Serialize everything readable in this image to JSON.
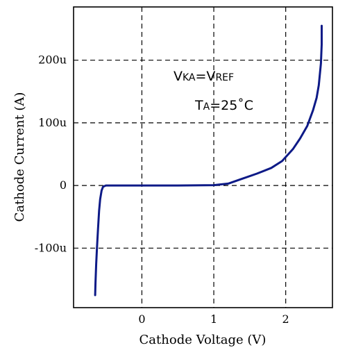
{
  "chart_data": {
    "type": "line",
    "xlabel": "Cathode Voltage (V)",
    "ylabel": "Cathode Current (A)",
    "xlim": [
      -0.95,
      2.65
    ],
    "ylim": [
      -0.000195,
      0.000285
    ],
    "grid": true,
    "x_ticks": [
      {
        "value": 0,
        "label": "0"
      },
      {
        "value": 1,
        "label": "1"
      },
      {
        "value": 2,
        "label": "2"
      }
    ],
    "y_ticks": [
      {
        "value": -0.0001,
        "label": "-100u"
      },
      {
        "value": 0,
        "label": "0"
      },
      {
        "value": 0.0001,
        "label": "100u"
      },
      {
        "value": 0.0002,
        "label": "200u"
      }
    ],
    "annotations": [
      {
        "main": "V",
        "sub": "KA",
        "main2": "=V",
        "sub2": "REF"
      },
      {
        "main": "T",
        "sub": "A",
        "main2": "=25˚C",
        "sub2": ""
      }
    ],
    "series": [
      {
        "color": "#0d1a87",
        "x": [
          -0.65,
          -0.645,
          -0.635,
          -0.625,
          -0.61,
          -0.595,
          -0.58,
          -0.56,
          -0.54,
          -0.5,
          -0.45,
          -0.3,
          0,
          0.5,
          1.0,
          1.2,
          1.4,
          1.6,
          1.8,
          1.95,
          2.1,
          2.2,
          2.3,
          2.38,
          2.43,
          2.46,
          2.49,
          2.5,
          2.5
        ],
        "y": [
          -0.000175,
          -0.000155,
          -0.000125,
          -0.0001,
          -7e-05,
          -4e-05,
          -2.2e-05,
          -8e-06,
          -2e-06,
          0,
          0,
          0,
          0,
          0,
          5e-07,
          3e-06,
          1.1e-05,
          1.9e-05,
          2.8e-05,
          3.9e-05,
          5.8e-05,
          7.5e-05,
          9.5e-05,
          0.00012,
          0.00014,
          0.00016,
          0.000195,
          0.000225,
          0.000255
        ]
      }
    ]
  }
}
